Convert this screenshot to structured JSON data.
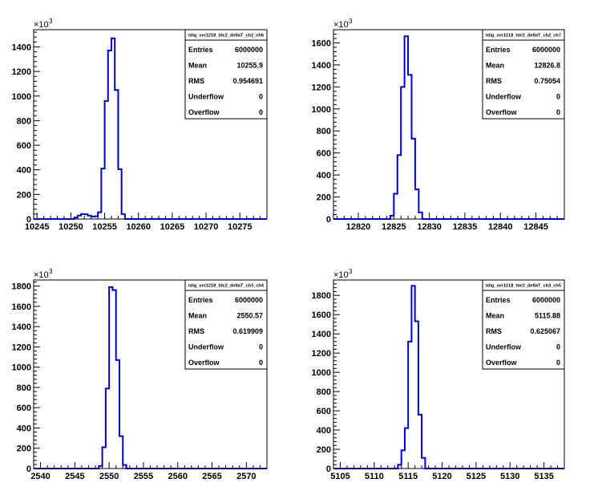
{
  "chart_data": [
    {
      "type": "histogram",
      "stats_title": "tdig_ser1218_tdc2_deltaT_ch2_ch6",
      "stats": [
        {
          "label": "Entries",
          "value": "6000000"
        },
        {
          "label": "Mean",
          "value": "10255.9"
        },
        {
          "label": "RMS",
          "value": "0.954691"
        },
        {
          "label": "Underflow",
          "value": "0"
        },
        {
          "label": "Overflow",
          "value": "0"
        }
      ],
      "y_multiplier": "×10",
      "y_exponent": "3",
      "xlim": [
        10244.5,
        10279
      ],
      "ylim": [
        0,
        1540
      ],
      "xticks": [
        10245,
        10250,
        10255,
        10260,
        10265,
        10270,
        10275
      ],
      "yticks": [
        0,
        200,
        400,
        600,
        800,
        1000,
        1200,
        1400
      ],
      "xtick_labels": [
        "10245",
        "10250",
        "10255",
        "10260",
        "10265",
        "10270",
        "10275"
      ],
      "ytick_labels": [
        "0",
        "200",
        "400",
        "600",
        "800",
        "1000",
        "1200",
        "1400"
      ],
      "bins": [
        {
          "lo": 10244.5,
          "hi": 10250.5,
          "y": 0
        },
        {
          "lo": 10250.5,
          "hi": 10251.0,
          "y": 12
        },
        {
          "lo": 10251.0,
          "hi": 10251.5,
          "y": 28
        },
        {
          "lo": 10251.5,
          "hi": 10252.0,
          "y": 40
        },
        {
          "lo": 10252.0,
          "hi": 10252.5,
          "y": 38
        },
        {
          "lo": 10252.5,
          "hi": 10253.0,
          "y": 28
        },
        {
          "lo": 10253.0,
          "hi": 10253.5,
          "y": 20
        },
        {
          "lo": 10253.5,
          "hi": 10254.0,
          "y": 22
        },
        {
          "lo": 10254.0,
          "hi": 10254.5,
          "y": 55
        },
        {
          "lo": 10254.5,
          "hi": 10255.0,
          "y": 410
        },
        {
          "lo": 10255.0,
          "hi": 10255.5,
          "y": 960
        },
        {
          "lo": 10255.5,
          "hi": 10256.0,
          "y": 1370
        },
        {
          "lo": 10256.0,
          "hi": 10256.5,
          "y": 1470
        },
        {
          "lo": 10256.5,
          "hi": 10257.0,
          "y": 1050
        },
        {
          "lo": 10257.0,
          "hi": 10257.5,
          "y": 405
        },
        {
          "lo": 10257.5,
          "hi": 10258.0,
          "y": 40
        },
        {
          "lo": 10258.0,
          "hi": 10279.0,
          "y": 0
        }
      ]
    },
    {
      "type": "histogram",
      "stats_title": "tdig_ser1218_tdc2_deltaT_ch2_ch7",
      "stats": [
        {
          "label": "Entries",
          "value": "6000000"
        },
        {
          "label": "Mean",
          "value": "12826.8"
        },
        {
          "label": "RMS",
          "value": "0.75054"
        },
        {
          "label": "Underflow",
          "value": "0"
        },
        {
          "label": "Overflow",
          "value": "0"
        }
      ],
      "y_multiplier": "×10",
      "y_exponent": "3",
      "xlim": [
        12816.5,
        12849
      ],
      "ylim": [
        0,
        1720
      ],
      "xticks": [
        12820,
        12825,
        12830,
        12835,
        12840,
        12845
      ],
      "yticks": [
        0,
        200,
        400,
        600,
        800,
        1000,
        1200,
        1400,
        1600
      ],
      "xtick_labels": [
        "12820",
        "12825",
        "12830",
        "12835",
        "12840",
        "12845"
      ],
      "ytick_labels": [
        "0",
        "200",
        "400",
        "600",
        "800",
        "1000",
        "1200",
        "1400",
        "1600"
      ],
      "bins": [
        {
          "lo": 12816.5,
          "hi": 12824.5,
          "y": 0
        },
        {
          "lo": 12824.5,
          "hi": 12825.0,
          "y": 30
        },
        {
          "lo": 12825.0,
          "hi": 12825.5,
          "y": 230
        },
        {
          "lo": 12825.5,
          "hi": 12826.0,
          "y": 580
        },
        {
          "lo": 12826.0,
          "hi": 12826.5,
          "y": 1200
        },
        {
          "lo": 12826.5,
          "hi": 12827.0,
          "y": 1660
        },
        {
          "lo": 12827.0,
          "hi": 12827.5,
          "y": 1310
        },
        {
          "lo": 12827.5,
          "hi": 12828.0,
          "y": 730
        },
        {
          "lo": 12828.0,
          "hi": 12828.5,
          "y": 270
        },
        {
          "lo": 12828.5,
          "hi": 12829.0,
          "y": 60
        },
        {
          "lo": 12829.0,
          "hi": 12849.0,
          "y": 0
        }
      ]
    },
    {
      "type": "histogram",
      "stats_title": "tdig_ser1218_tdc2_deltaT_ch3_ch4",
      "stats": [
        {
          "label": "Entries",
          "value": "6000000"
        },
        {
          "label": "Mean",
          "value": "2550.57"
        },
        {
          "label": "RMS",
          "value": "0.619909"
        },
        {
          "label": "Underflow",
          "value": "0"
        },
        {
          "label": "Overflow",
          "value": "0"
        }
      ],
      "y_multiplier": "×10",
      "y_exponent": "3",
      "xlim": [
        2539,
        2573
      ],
      "ylim": [
        0,
        1860
      ],
      "xticks": [
        2540,
        2545,
        2550,
        2555,
        2560,
        2565,
        2570
      ],
      "yticks": [
        0,
        200,
        400,
        600,
        800,
        1000,
        1200,
        1400,
        1600,
        1800
      ],
      "xtick_labels": [
        "2540",
        "2545",
        "2550",
        "2555",
        "2560",
        "2565",
        "2570"
      ],
      "ytick_labels": [
        "0",
        "200",
        "400",
        "600",
        "800",
        "1000",
        "1200",
        "1400",
        "1600",
        "1800"
      ],
      "bins": [
        {
          "lo": 2539.0,
          "hi": 2548.5,
          "y": 0
        },
        {
          "lo": 2548.5,
          "hi": 2549.0,
          "y": 25
        },
        {
          "lo": 2549.0,
          "hi": 2549.5,
          "y": 210
        },
        {
          "lo": 2549.5,
          "hi": 2550.0,
          "y": 790
        },
        {
          "lo": 2550.0,
          "hi": 2550.5,
          "y": 1790
        },
        {
          "lo": 2550.5,
          "hi": 2551.0,
          "y": 1760
        },
        {
          "lo": 2551.0,
          "hi": 2551.5,
          "y": 1070
        },
        {
          "lo": 2551.5,
          "hi": 2552.0,
          "y": 320
        },
        {
          "lo": 2552.0,
          "hi": 2552.5,
          "y": 35
        },
        {
          "lo": 2552.5,
          "hi": 2573.0,
          "y": 0
        }
      ]
    },
    {
      "type": "histogram",
      "stats_title": "tdig_ser1218_tdc2_deltaT_ch3_ch5",
      "stats": [
        {
          "label": "Entries",
          "value": "6000000"
        },
        {
          "label": "Mean",
          "value": "5115.88"
        },
        {
          "label": "RMS",
          "value": "0.625067"
        },
        {
          "label": "Underflow",
          "value": "0"
        },
        {
          "label": "Overflow",
          "value": "0"
        }
      ],
      "y_multiplier": "×10",
      "y_exponent": "3",
      "xlim": [
        5104,
        5138
      ],
      "ylim": [
        0,
        1960
      ],
      "xticks": [
        5105,
        5110,
        5115,
        5120,
        5125,
        5130,
        5135
      ],
      "yticks": [
        0,
        200,
        400,
        600,
        800,
        1000,
        1200,
        1400,
        1600,
        1800
      ],
      "xtick_labels": [
        "5105",
        "5110",
        "5115",
        "5120",
        "5125",
        "5130",
        "5135"
      ],
      "ytick_labels": [
        "0",
        "200",
        "400",
        "600",
        "800",
        "1000",
        "1200",
        "1400",
        "1600",
        "1800"
      ],
      "bins": [
        {
          "lo": 5104.0,
          "hi": 5113.5,
          "y": 0
        },
        {
          "lo": 5113.5,
          "hi": 5114.0,
          "y": 40
        },
        {
          "lo": 5114.0,
          "hi": 5114.5,
          "y": 190
        },
        {
          "lo": 5114.5,
          "hi": 5115.0,
          "y": 420
        },
        {
          "lo": 5115.0,
          "hi": 5115.5,
          "y": 1320
        },
        {
          "lo": 5115.5,
          "hi": 5116.0,
          "y": 1900
        },
        {
          "lo": 5116.0,
          "hi": 5116.5,
          "y": 1530
        },
        {
          "lo": 5116.5,
          "hi": 5117.0,
          "y": 560
        },
        {
          "lo": 5117.0,
          "hi": 5117.5,
          "y": 110
        },
        {
          "lo": 5117.5,
          "hi": 5138.0,
          "y": 0
        }
      ]
    }
  ],
  "style": {
    "line_color": "#0000cc",
    "axis_color": "#000000",
    "background": "#ffffff"
  }
}
